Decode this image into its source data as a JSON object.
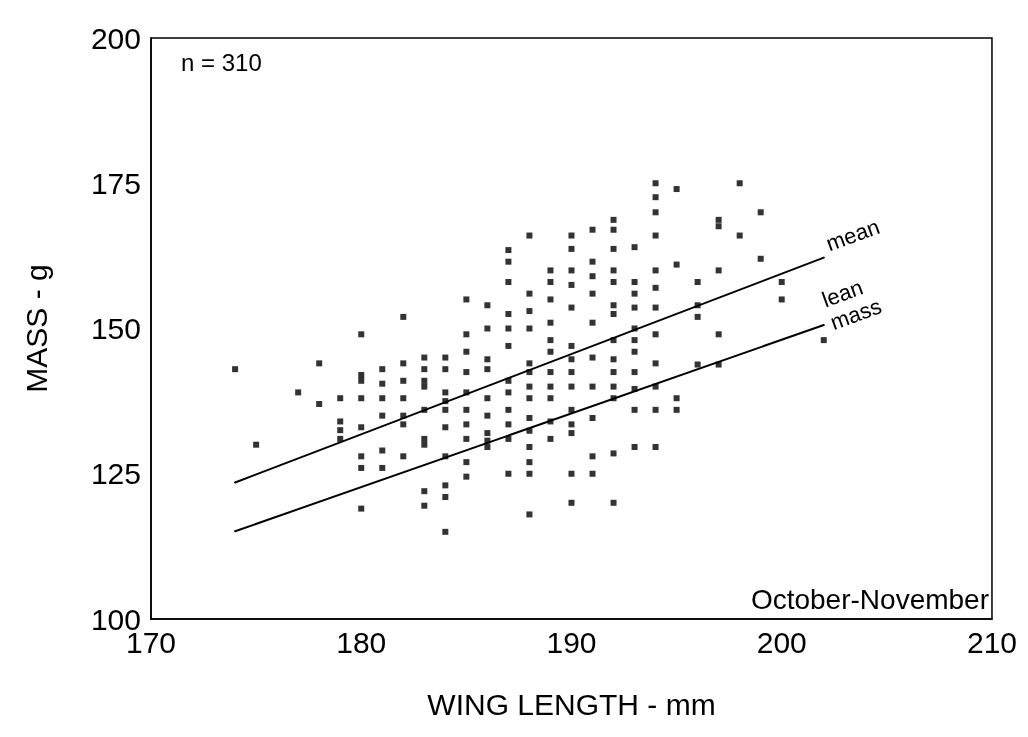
{
  "chart_data": {
    "type": "scatter",
    "xlabel": "WING LENGTH - mm",
    "ylabel": "MASS - g",
    "annotations": [
      "n = 310",
      "October-November"
    ],
    "xlim": [
      170,
      210
    ],
    "xticks": [
      170,
      180,
      190,
      200,
      210
    ],
    "ylim": [
      100,
      200
    ],
    "yticks": [
      100,
      125,
      150,
      175,
      200
    ],
    "grid": false,
    "line_style": "solid",
    "series": [
      {
        "marker": "square",
        "color": "#000000",
        "x": [
          174,
          175,
          177,
          178,
          178,
          179,
          179,
          179,
          179,
          180,
          180,
          180,
          180,
          180,
          180,
          180,
          180,
          181,
          181,
          181,
          181,
          181,
          181,
          182,
          182,
          182,
          182,
          182,
          182,
          182,
          183,
          183,
          183,
          183,
          183,
          183,
          183,
          183,
          183,
          184,
          184,
          184,
          184,
          184,
          184,
          184,
          184,
          184,
          184,
          185,
          185,
          185,
          185,
          185,
          185,
          185,
          185,
          185,
          185,
          186,
          186,
          186,
          186,
          186,
          186,
          186,
          186,
          186,
          187,
          187,
          187,
          187,
          187,
          187,
          187,
          187,
          187,
          187,
          187,
          187,
          188,
          188,
          188,
          188,
          188,
          188,
          188,
          188,
          188,
          188,
          188,
          188,
          188,
          188,
          189,
          189,
          189,
          189,
          189,
          189,
          189,
          189,
          189,
          189,
          189,
          190,
          190,
          190,
          190,
          190,
          190,
          190,
          190,
          190,
          190,
          190,
          190,
          190,
          190,
          191,
          191,
          191,
          191,
          191,
          191,
          191,
          191,
          191,
          191,
          192,
          192,
          192,
          192,
          192,
          192,
          192,
          192,
          192,
          192,
          192,
          192,
          192,
          192,
          193,
          193,
          193,
          193,
          193,
          193,
          193,
          193,
          193,
          193,
          193,
          194,
          194,
          194,
          194,
          194,
          194,
          194,
          194,
          194,
          194,
          194,
          194,
          195,
          195,
          195,
          195,
          196,
          196,
          196,
          196,
          197,
          197,
          197,
          197,
          197,
          198,
          198,
          199,
          199,
          200,
          200,
          202
        ],
        "values": [
          143,
          130,
          139,
          144,
          137,
          138,
          134,
          132.5,
          131,
          149,
          142,
          141,
          138,
          133,
          128,
          126,
          119,
          143,
          140.5,
          138,
          135,
          129,
          126,
          152,
          144,
          141,
          138,
          135,
          133.5,
          128,
          145,
          143,
          141,
          140,
          136,
          131,
          130,
          122,
          119.5,
          145,
          143,
          139,
          137.5,
          136,
          133,
          128,
          123,
          121,
          115,
          155,
          149,
          146,
          142.5,
          139,
          136,
          133.5,
          131,
          127,
          124.5,
          154,
          150,
          144.7,
          143,
          138,
          135,
          132,
          130.7,
          129.6,
          163.5,
          161.5,
          158,
          152.5,
          150,
          147,
          141,
          139,
          136,
          133.5,
          131,
          125,
          166,
          156,
          153,
          150,
          144,
          142.5,
          140,
          138,
          134.6,
          132.4,
          129.6,
          127,
          125,
          118,
          160,
          158,
          155,
          151,
          148,
          146,
          142.5,
          140,
          138,
          134,
          131,
          166,
          163.7,
          160,
          157.5,
          153.6,
          147,
          144.7,
          142.5,
          140,
          136,
          133.5,
          132,
          125,
          120,
          167,
          161.5,
          159,
          156,
          151,
          145,
          140,
          134.6,
          128,
          125,
          168.7,
          167,
          163.7,
          160,
          158,
          154,
          152.5,
          148,
          144.7,
          142.5,
          140,
          138,
          128.5,
          120,
          164,
          158,
          156,
          153.6,
          150,
          148,
          146,
          142.5,
          139.6,
          136,
          129.6,
          175,
          172.6,
          170,
          166,
          160,
          157,
          153.6,
          149,
          144,
          140,
          136,
          129.6,
          174,
          161,
          138,
          136,
          158,
          154,
          152,
          143.8,
          168.7,
          167.6,
          160,
          149,
          143.8,
          175,
          166,
          170,
          162,
          158,
          155,
          148
        ]
      },
      {
        "type": "line",
        "marker": "none",
        "name": "mean",
        "color": "#000000",
        "x": [
          174,
          202
        ],
        "values": [
          123.5,
          162.2
        ]
      },
      {
        "type": "line",
        "marker": "none",
        "name": "lean mass",
        "color": "#000000",
        "x": [
          174,
          202
        ],
        "values": [
          115.1,
          150.6
        ]
      }
    ]
  }
}
